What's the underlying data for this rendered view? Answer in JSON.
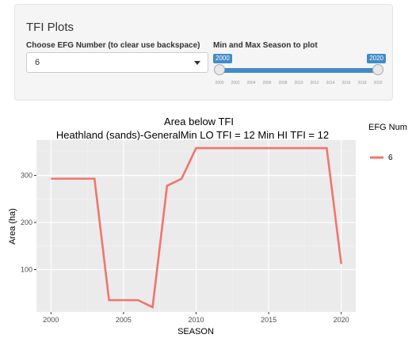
{
  "panel": {
    "title": "TFI Plots",
    "efg_label": "Choose EFG Number (to clear use backspace)",
    "efg_value": "6",
    "season_label": "Min and Max Season to plot",
    "slider_min": "2000",
    "slider_max": "2020",
    "slider_ticks": [
      "2000",
      "2002",
      "2004",
      "2006",
      "2008",
      "2010",
      "2012",
      "2014",
      "2016",
      "2018",
      "2020"
    ]
  },
  "chart_data": {
    "type": "line",
    "title": "Area below TFI",
    "subtitle": "Heathland (sands)-GeneralMin LO TFI = 12  Min HI TFI = 12",
    "xlabel": "SEASON",
    "ylabel": "Area (ha)",
    "x_ticks": [
      "2000",
      "2005",
      "2010",
      "2015",
      "2020"
    ],
    "y_ticks": [
      "100",
      "200",
      "300"
    ],
    "xlim": [
      1999,
      2021
    ],
    "ylim": [
      10,
      375
    ],
    "grid": true,
    "legend_title": "EFG Num",
    "series": [
      {
        "name": "6",
        "color": "#ef766c",
        "x": [
          2000,
          2001,
          2002,
          2003,
          2004,
          2005,
          2006,
          2007,
          2008,
          2009,
          2010,
          2011,
          2012,
          2013,
          2014,
          2015,
          2016,
          2017,
          2018,
          2019,
          2020
        ],
        "y": [
          293,
          293,
          293,
          293,
          35,
          35,
          35,
          20,
          278,
          293,
          358,
          358,
          358,
          358,
          358,
          358,
          358,
          358,
          358,
          358,
          112
        ]
      }
    ]
  }
}
